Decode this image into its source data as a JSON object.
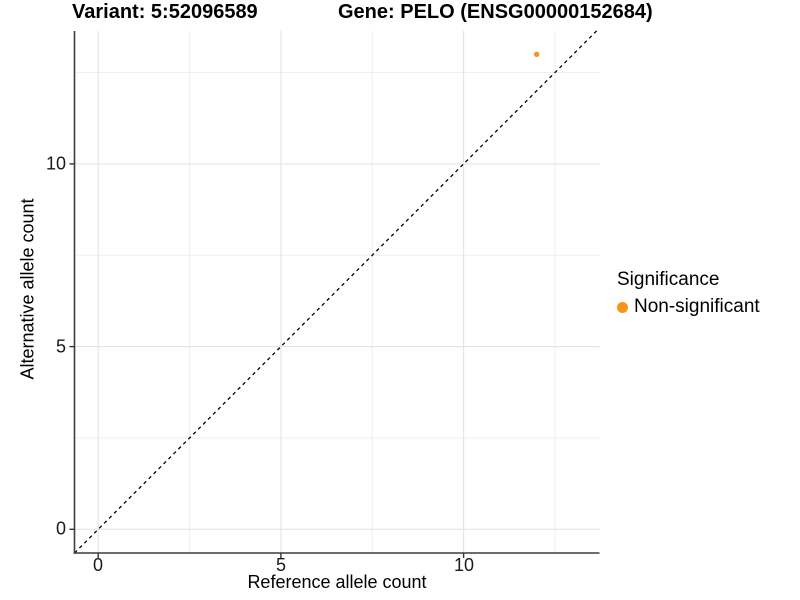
{
  "titles": {
    "variant": "Variant: 5:52096589",
    "gene": "Gene: PELO (ENSG00000152684)"
  },
  "chart_data": {
    "type": "scatter",
    "xlabel": "Reference allele count",
    "ylabel": "Alternative allele count",
    "x_ticks": [
      "0",
      "5",
      "10"
    ],
    "y_ticks": [
      "0",
      "5",
      "10"
    ],
    "x_tick_values": [
      0,
      5,
      10
    ],
    "y_tick_values": [
      0,
      5,
      10
    ],
    "xlim": [
      -0.65,
      13.72
    ],
    "ylim": [
      -0.65,
      13.64
    ],
    "grid_major": [
      0,
      5,
      10
    ],
    "grid_minor": [
      2.5,
      7.5,
      12.5
    ],
    "grid_on": true,
    "points": [
      {
        "x": 12,
        "y": 13,
        "series": "Non-significant"
      }
    ],
    "identity_line": {
      "style": "dashed",
      "slope": 1,
      "intercept": 0,
      "color": "#000000"
    },
    "legend": {
      "title": "Significance",
      "position": "right",
      "items": [
        {
          "label": "Non-significant",
          "color": "#F7941D"
        }
      ]
    },
    "colors": {
      "point": "#F7941D",
      "axis_line": "#3d3d3d",
      "tick_mark": "#333333",
      "grid_major": "#e4e4e4",
      "grid_minor": "#efefef",
      "background": "#ffffff"
    }
  }
}
